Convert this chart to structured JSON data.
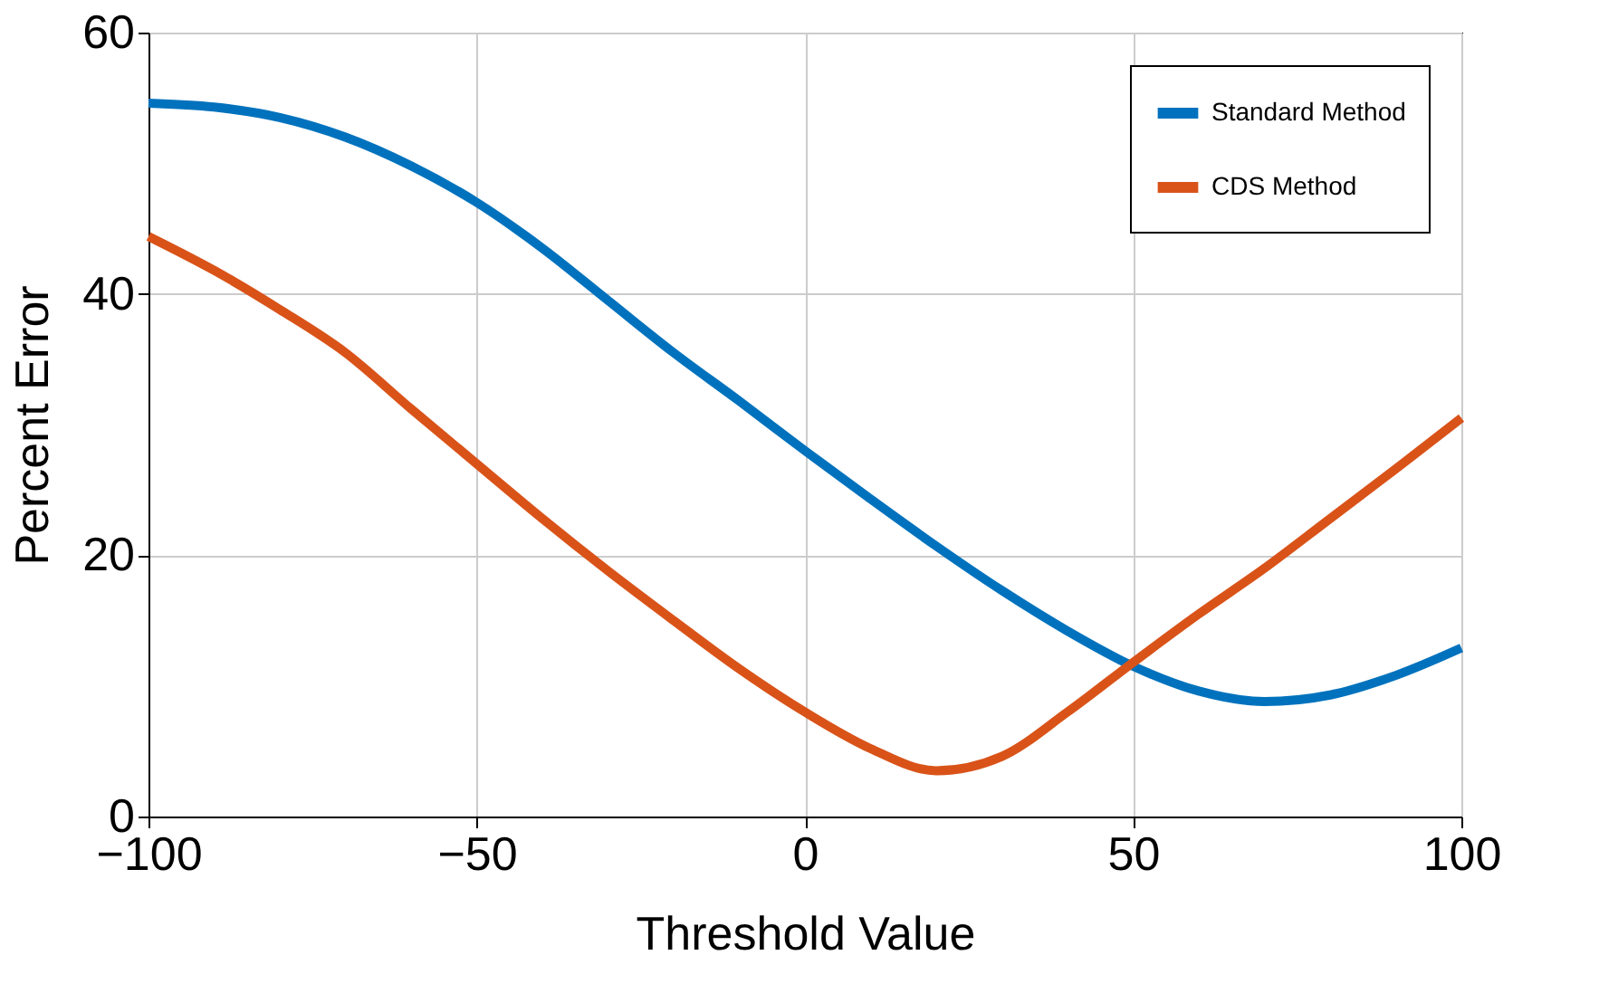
{
  "chart_data": {
    "type": "line",
    "xlabel": "Threshold Value",
    "ylabel": "Percent Error",
    "x": [
      -100,
      -90,
      -80,
      -70,
      -60,
      -50,
      -40,
      -30,
      -20,
      -10,
      0,
      10,
      20,
      30,
      40,
      50,
      60,
      70,
      80,
      90,
      100
    ],
    "series": [
      {
        "name": "Standard Method",
        "color": "#0072bd",
        "values": [
          54.6,
          54.3,
          53.5,
          52,
          49.8,
          47,
          43.5,
          39.5,
          35.5,
          31.8,
          28,
          24.3,
          20.7,
          17.3,
          14.2,
          11.5,
          9.6,
          8.8,
          9.3,
          10.8,
          12.9
        ]
      },
      {
        "name": "CDS Method",
        "color": "#d95319",
        "values": [
          44.4,
          41.8,
          38.8,
          35.5,
          31.2,
          27,
          22.8,
          18.8,
          15,
          11.3,
          8,
          5.2,
          3.5,
          4.6,
          8,
          11.8,
          15.5,
          19,
          22.8,
          26.6,
          30.5
        ]
      }
    ],
    "xlim": [
      -100,
      100
    ],
    "xticks": [
      -100,
      -50,
      0,
      50,
      100
    ],
    "ylim": [
      0,
      60
    ],
    "yticks": [
      0,
      20,
      40,
      60
    ],
    "grid": true,
    "legend": "top right",
    "line_style": "solid",
    "marker": "none"
  }
}
